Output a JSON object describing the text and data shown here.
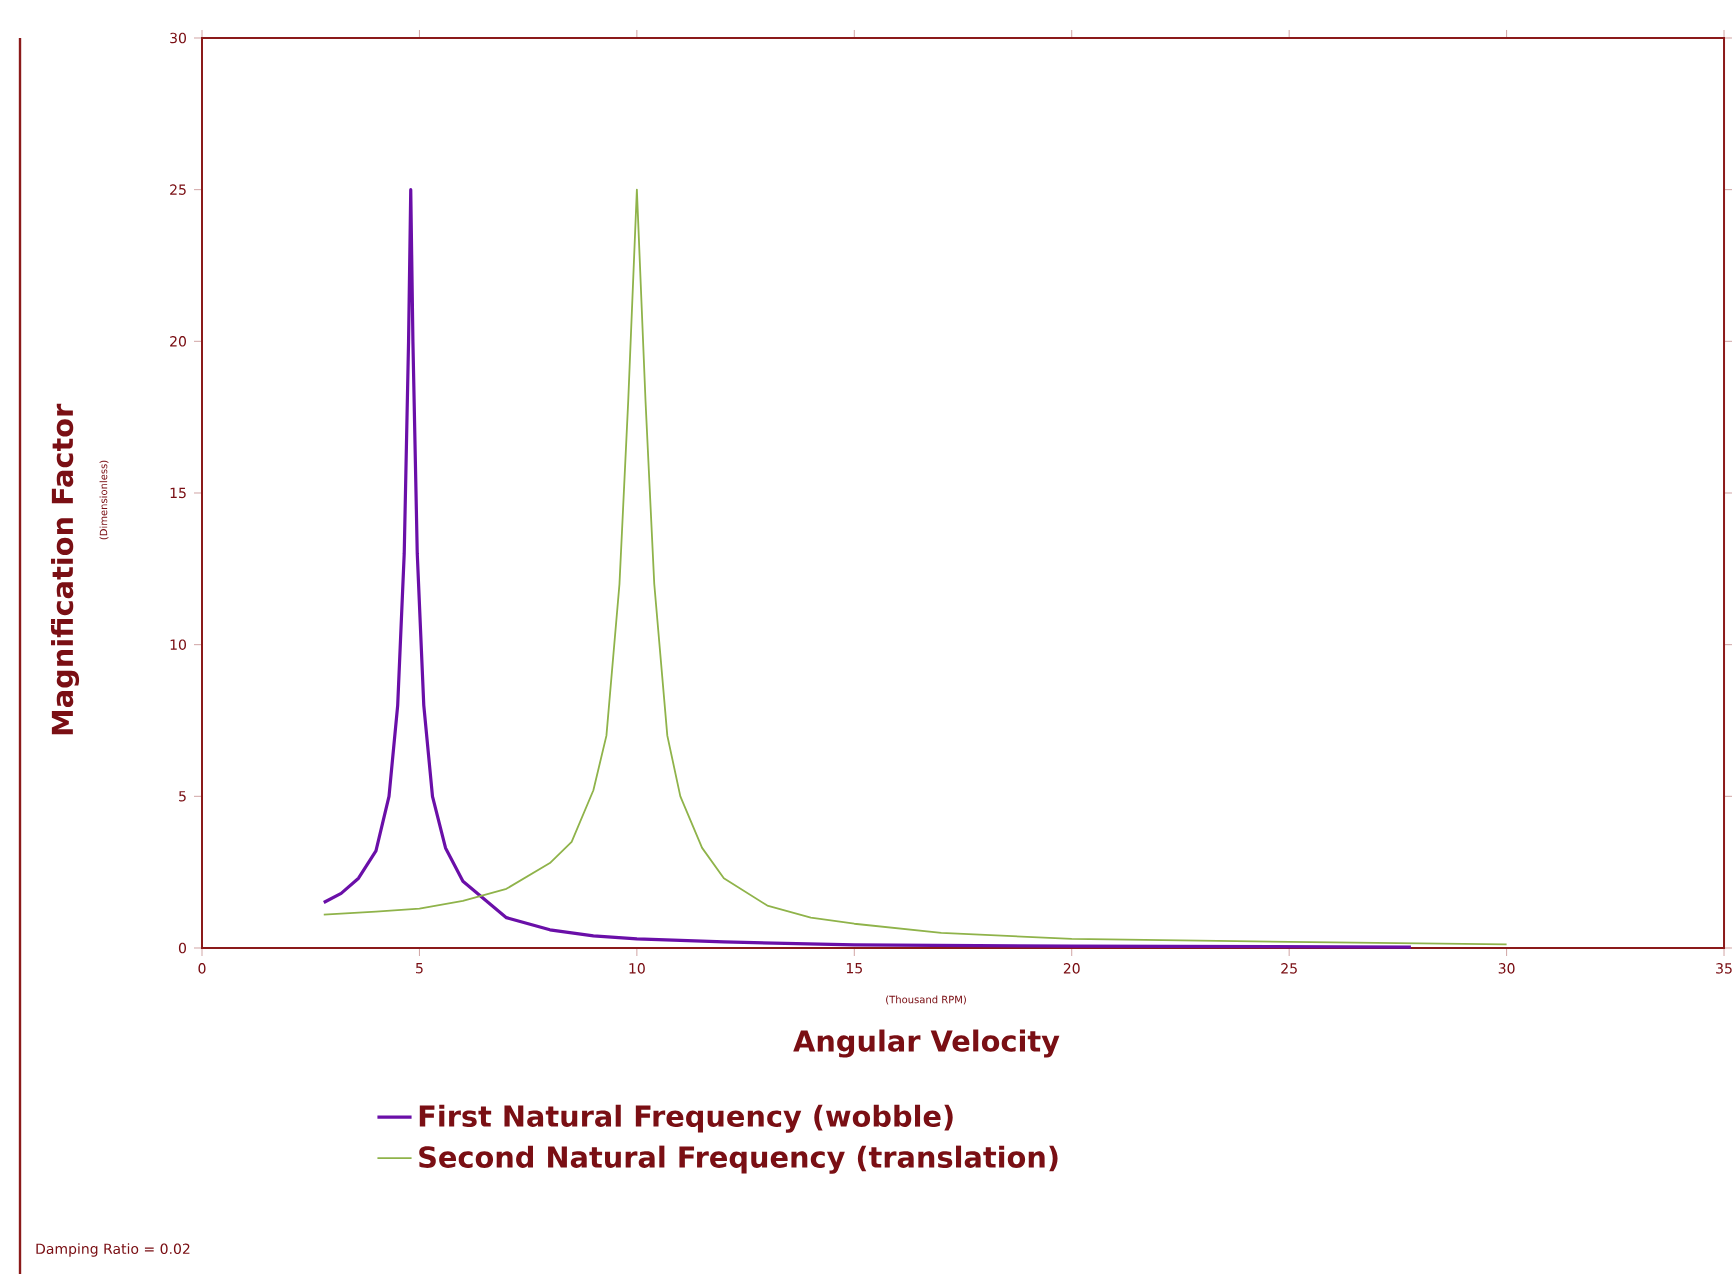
{
  "chart_data": {
    "type": "line",
    "xlabel": "Angular Velocity",
    "ylabel": "Magnification Factor",
    "annotations": [
      "(Thousand RPM)",
      "(Dimensionless)",
      "Damping Ratio = 0.02"
    ],
    "xlim": [
      0,
      35
    ],
    "ylim": [
      0,
      30
    ],
    "xticks": [
      0,
      5,
      10,
      15,
      20,
      25,
      30,
      35
    ],
    "yticks": [
      0,
      5,
      10,
      15,
      20,
      25,
      30
    ],
    "grid": false,
    "legend": "bottom",
    "marker": "none",
    "line_style": "solid",
    "series": [
      {
        "name": "First Natural Frequency (wobble)",
        "color": "#6a0fa8",
        "x": [
          2.8,
          3.2,
          3.6,
          4.0,
          4.3,
          4.5,
          4.65,
          4.75,
          4.8,
          4.85,
          4.95,
          5.1,
          5.3,
          5.6,
          6,
          7,
          8,
          9,
          10,
          12,
          15,
          20,
          27.8
        ],
        "values": [
          1.5,
          1.8,
          2.3,
          3.2,
          5,
          8,
          13,
          20,
          25,
          20,
          13,
          8,
          5,
          3.3,
          2.2,
          1.0,
          0.6,
          0.4,
          0.3,
          0.2,
          0.1,
          0.06,
          0.03
        ]
      },
      {
        "name": "Second Natural Frequency (translation)",
        "color": "#8fb34a",
        "x": [
          2.8,
          4,
          5,
          6,
          7,
          8,
          8.5,
          9,
          9.3,
          9.6,
          9.8,
          10,
          10.2,
          10.4,
          10.7,
          11,
          11.5,
          12,
          13,
          14,
          15,
          17,
          20,
          25,
          30
        ],
        "values": [
          1.1,
          1.2,
          1.3,
          1.55,
          1.95,
          2.8,
          3.5,
          5.2,
          7,
          12,
          18,
          25,
          18,
          12,
          7,
          5,
          3.3,
          2.3,
          1.4,
          1.0,
          0.8,
          0.5,
          0.3,
          0.2,
          0.12
        ]
      }
    ]
  }
}
